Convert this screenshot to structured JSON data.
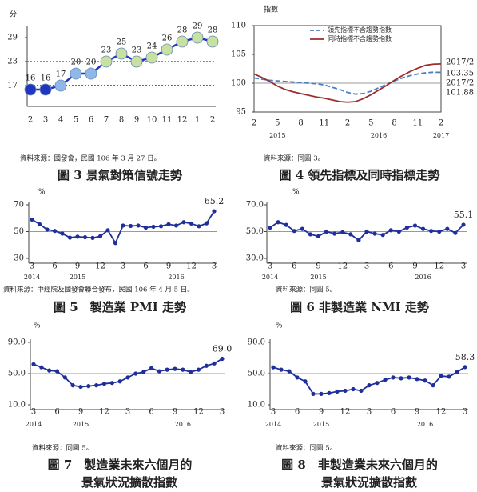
{
  "chart_data": [
    {
      "type": "line",
      "title": "圖 3 景氣對策信號走勢",
      "y_label": "分",
      "source": "資料來源：國發會，民國 106 年 3 月 27 日。",
      "categories": [
        "2",
        "3",
        "4",
        "5",
        "6",
        "7",
        "8",
        "9",
        "10",
        "11",
        "12",
        "1",
        "2"
      ],
      "values": [
        16,
        16,
        17,
        20,
        20,
        23,
        25,
        23,
        24,
        26,
        28,
        29,
        28
      ],
      "color": "#2035c0",
      "markers": true,
      "data_labels": true,
      "point_colors": [
        "#2035c0",
        "#2035c0",
        "#8fb8e8",
        "#8fb8e8",
        "#8fb8e8",
        "#c8e0a0",
        "#c8e0a0",
        "#c8e0a0",
        "#c8e0a0",
        "#c8e0a0",
        "#c8e0a0",
        "#c8e0a0",
        "#c8e0a0"
      ],
      "ylim": [
        13,
        31
      ],
      "yticks": [
        17,
        23,
        29
      ],
      "ref_lines": [
        {
          "value": 23,
          "color": "#2e8b2e"
        },
        {
          "value": 17,
          "color": "#2a2ad0"
        }
      ]
    },
    {
      "type": "line",
      "title": "圖 4 領先指標及同時指標走勢",
      "y_label": "指數",
      "source": "資料來源：同圖 3。",
      "categories": [
        "2",
        null,
        null,
        "5",
        null,
        null,
        "8",
        null,
        null,
        "11",
        null,
        null,
        "2",
        null,
        null,
        "5",
        null,
        null,
        "8",
        null,
        null,
        "11",
        null,
        null,
        "2"
      ],
      "years": [
        "2015",
        "2016",
        "2017"
      ],
      "series": [
        {
          "name": "領先指標不含趨勢指數",
          "color": "#4a7fc1",
          "dash": true,
          "values": [
            100.9,
            100.7,
            100.5,
            100.4,
            100.3,
            100.2,
            100.1,
            100.0,
            99.9,
            99.7,
            99.3,
            98.9,
            98.4,
            98.1,
            98.2,
            98.6,
            99.2,
            99.8,
            100.4,
            100.9,
            101.3,
            101.6,
            101.8,
            101.9,
            101.88
          ]
        },
        {
          "name": "同時指標不含趨勢指數",
          "color": "#9b2d2d",
          "dash": false,
          "values": [
            101.6,
            101.0,
            100.3,
            99.5,
            98.9,
            98.5,
            98.2,
            97.9,
            97.6,
            97.4,
            97.1,
            96.8,
            96.7,
            96.8,
            97.3,
            98.0,
            98.8,
            99.6,
            100.5,
            101.3,
            102.0,
            102.6,
            103.1,
            103.3,
            103.35
          ]
        }
      ],
      "annotations": [
        {
          "text": "2017/2",
          "color": "#c0392b"
        },
        {
          "text": "103.35",
          "color": "#c0392b"
        },
        {
          "text": "2017/2",
          "color": "#2c5aa0"
        },
        {
          "text": "101.88",
          "color": "#2c5aa0"
        }
      ],
      "ylim": [
        95,
        110
      ],
      "yticks": [
        95,
        100,
        105,
        110
      ],
      "ref_lines": [
        {
          "value": 100,
          "color": "#999999"
        }
      ]
    },
    {
      "type": "line",
      "title": "圖 5　製造業 PMI 走勢",
      "y_label": "%",
      "source": "資料來源：中經院及國發會聯合發布，民國 106 年 4 月 5 日。",
      "categories": [
        "3",
        null,
        null,
        "6",
        null,
        null,
        "9",
        null,
        null,
        "12",
        null,
        null,
        "3",
        null,
        null,
        "6",
        null,
        null,
        "9",
        null,
        null,
        "12",
        null,
        null,
        "3"
      ],
      "years": [
        "2014",
        "2015",
        "2016"
      ],
      "values": [
        59.0,
        55.5,
        51.5,
        50.5,
        48.5,
        45.5,
        46.2,
        45.8,
        45.3,
        46.5,
        51.0,
        41.5,
        54.5,
        54.2,
        54.5,
        53.0,
        53.6,
        54.0,
        55.5,
        54.5,
        57.0,
        56.0,
        54.0,
        56.2,
        65.2
      ],
      "value_labels": [
        null,
        null,
        null,
        null,
        null,
        null,
        null,
        null,
        null,
        null,
        null,
        null,
        null,
        null,
        null,
        null,
        null,
        null,
        null,
        null,
        null,
        null,
        null,
        null,
        "65.2"
      ],
      "color": "#1f2f9a",
      "markers": true,
      "ylim": [
        30,
        70
      ],
      "yticks": [
        30,
        50,
        70
      ],
      "ref_lines": [
        {
          "value": 50,
          "color": "#999999"
        }
      ]
    },
    {
      "type": "line",
      "title": "圖 6 非製造業 NMI 走勢",
      "y_label": "%",
      "source": "資料來源：同圖 5。",
      "categories": [
        "3",
        null,
        null,
        "6",
        null,
        null,
        "9",
        null,
        null,
        "12",
        null,
        null,
        "3",
        null,
        null,
        "6",
        null,
        null,
        "9",
        null,
        null,
        "12",
        null,
        null,
        "3"
      ],
      "years": [
        "2014",
        "2015",
        "2016"
      ],
      "values": [
        53.0,
        57.0,
        55.0,
        50.5,
        52.0,
        48.0,
        46.5,
        50.0,
        48.5,
        49.5,
        48.0,
        43.5,
        50.0,
        48.5,
        47.5,
        51.0,
        50.0,
        53.0,
        54.5,
        52.0,
        50.5,
        50.0,
        52.0,
        49.0,
        55.1
      ],
      "value_labels": [
        null,
        null,
        null,
        null,
        null,
        null,
        null,
        null,
        null,
        null,
        null,
        null,
        null,
        null,
        null,
        null,
        null,
        null,
        null,
        null,
        null,
        null,
        null,
        null,
        "55.1"
      ],
      "color": "#1f2f9a",
      "markers": true,
      "ylim": [
        30,
        70
      ],
      "yticks": [
        {
          "value": 30,
          "label": "30.0"
        },
        {
          "value": 50,
          "label": "50.0"
        },
        {
          "value": 70,
          "label": "70.0"
        }
      ],
      "ref_lines": [
        {
          "value": 50,
          "color": "#999999"
        }
      ]
    },
    {
      "type": "line",
      "title": [
        "圖 7　製造業未來六個月的",
        "景氣狀況擴散指數"
      ],
      "y_label": "%",
      "source": "資料來源：同圖 5。",
      "categories": [
        "3",
        null,
        null,
        "6",
        null,
        null,
        "9",
        null,
        null,
        "12",
        null,
        null,
        "3",
        null,
        null,
        "6",
        null,
        null,
        "9",
        null,
        null,
        "12",
        null,
        null,
        "3"
      ],
      "years": [
        "2014",
        "2015",
        "2016"
      ],
      "values": [
        62,
        58,
        54,
        53,
        45,
        35,
        33,
        34,
        35,
        37,
        38,
        40,
        45,
        50,
        52,
        57,
        53,
        55,
        56,
        55,
        52,
        55,
        60,
        63,
        69
      ],
      "value_labels": [
        null,
        null,
        null,
        null,
        null,
        null,
        null,
        null,
        null,
        null,
        null,
        null,
        null,
        null,
        null,
        null,
        null,
        null,
        null,
        null,
        null,
        null,
        null,
        null,
        "69.0"
      ],
      "color": "#1f2f9a",
      "markers": true,
      "ylim": [
        10,
        90
      ],
      "yticks": [
        {
          "value": 10,
          "label": "10.0"
        },
        {
          "value": 50,
          "label": "50.0"
        },
        {
          "value": 90,
          "label": "90.0"
        }
      ],
      "ref_lines": [
        {
          "value": 50,
          "color": "#999999"
        }
      ]
    },
    {
      "type": "line",
      "title": [
        "圖 8　非製造業未來六個月的",
        "景氣狀況擴散指數"
      ],
      "y_label": "%",
      "source": "資料來源：同圖 5。",
      "categories": [
        "3",
        null,
        null,
        "6",
        null,
        null,
        "9",
        null,
        null,
        "12",
        null,
        null,
        "3",
        null,
        null,
        "6",
        null,
        null,
        "9",
        null,
        null,
        "12",
        null,
        null,
        "3"
      ],
      "years": [
        "2014",
        "2015",
        "2016"
      ],
      "values": [
        58,
        55,
        53,
        45,
        40,
        24,
        24,
        25,
        27,
        28,
        30,
        28,
        35,
        38,
        42,
        45,
        44,
        45,
        43,
        41,
        35,
        47,
        46,
        52,
        58.3
      ],
      "value_labels": [
        null,
        null,
        null,
        null,
        null,
        null,
        null,
        null,
        null,
        null,
        null,
        null,
        null,
        null,
        null,
        null,
        null,
        null,
        null,
        null,
        null,
        null,
        null,
        null,
        "58.3"
      ],
      "color": "#1f2f9a",
      "markers": true,
      "ylim": [
        10,
        90
      ],
      "yticks": [
        {
          "value": 10,
          "label": "10.0"
        },
        {
          "value": 50,
          "label": "50.0"
        },
        {
          "value": 90,
          "label": "90.0"
        }
      ],
      "ref_lines": [
        {
          "value": 50,
          "color": "#999999"
        }
      ]
    }
  ]
}
